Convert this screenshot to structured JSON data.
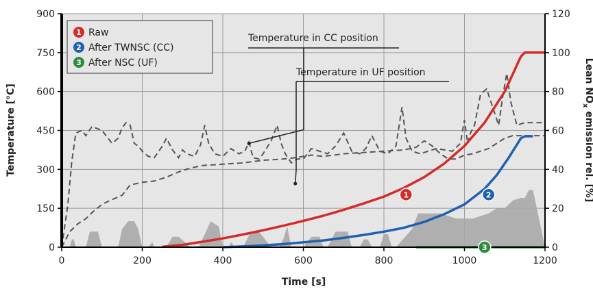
{
  "chart_data": {
    "type": "line",
    "xlabel": "Time [s]",
    "ylabel": "Temperature [°C]",
    "y2label": "Lean NO",
    "y2label_sub": "x",
    "y2label_tail": " emission rel. [%]",
    "xlim": [
      0,
      1200
    ],
    "ylim": [
      0,
      900
    ],
    "y2lim": [
      0,
      120
    ],
    "x_ticks": [
      0,
      200,
      400,
      600,
      800,
      1000,
      1200
    ],
    "y_ticks": [
      0,
      150,
      300,
      450,
      600,
      750,
      900
    ],
    "y2_ticks": [
      0,
      20,
      40,
      60,
      80,
      100,
      120
    ],
    "grid": true,
    "legend_position": "top-left",
    "legend": [
      {
        "badge": "1",
        "label": "Raw",
        "color": "#d42a2a"
      },
      {
        "badge": "2",
        "label": "After TWNSC (CC)",
        "color": "#2060b0"
      },
      {
        "badge": "3",
        "label": "After NSC (UF)",
        "color": "#2e8b3e"
      }
    ],
    "annotations": [
      {
        "text": "Temperature in CC position",
        "x": 465,
        "y": 400
      },
      {
        "text": "Temperature in UF position",
        "x": 580,
        "y": 245
      }
    ],
    "series": [
      {
        "axis": "left",
        "style": "dashed",
        "color": "#555555",
        "x": [
          0,
          15,
          25,
          35,
          50,
          60,
          75,
          100,
          125,
          140,
          150,
          160,
          170,
          180,
          190,
          200,
          215,
          230,
          250,
          260,
          275,
          290,
          300,
          310,
          330,
          345,
          355,
          365,
          380,
          400,
          420,
          440,
          455,
          465,
          475,
          490,
          500,
          520,
          535,
          545,
          555,
          570,
          585,
          600,
          620,
          640,
          660,
          680,
          700,
          720,
          740,
          755,
          770,
          790,
          810,
          830,
          845,
          855,
          870,
          890,
          910,
          930,
          950,
          970,
          990,
          1000,
          1008,
          1015,
          1025,
          1040,
          1055,
          1070,
          1085,
          1095,
          1105,
          1115,
          1130,
          1150,
          1160,
          1170,
          1180,
          1190,
          1200
        ],
        "y": [
          0,
          160,
          330,
          440,
          450,
          430,
          465,
          450,
          400,
          420,
          460,
          480,
          470,
          400,
          390,
          370,
          350,
          345,
          390,
          420,
          375,
          345,
          375,
          360,
          350,
          395,
          470,
          400,
          360,
          350,
          380,
          360,
          370,
          405,
          345,
          340,
          360,
          410,
          470,
          400,
          360,
          325,
          340,
          340,
          380,
          370,
          360,
          390,
          440,
          370,
          360,
          380,
          430,
          370,
          360,
          390,
          540,
          420,
          370,
          360,
          370,
          380,
          375,
          370,
          400,
          490,
          400,
          440,
          470,
          590,
          610,
          540,
          470,
          580,
          670,
          560,
          470,
          480,
          480,
          480,
          480,
          480,
          480
        ]
      },
      {
        "axis": "left",
        "style": "dashed",
        "color": "#555555",
        "x": [
          0,
          20,
          40,
          60,
          80,
          100,
          120,
          150,
          170,
          200,
          230,
          260,
          290,
          320,
          350,
          400,
          450,
          500,
          550,
          580,
          620,
          650,
          700,
          750,
          800,
          850,
          880,
          900,
          920,
          940,
          960,
          980,
          1000,
          1020,
          1040,
          1060,
          1080,
          1100,
          1120,
          1140,
          1160,
          1180,
          1200
        ],
        "y": [
          0,
          60,
          90,
          110,
          140,
          165,
          180,
          200,
          240,
          250,
          255,
          270,
          290,
          305,
          315,
          320,
          325,
          335,
          340,
          345,
          355,
          350,
          360,
          365,
          370,
          375,
          385,
          410,
          390,
          360,
          340,
          340,
          355,
          360,
          370,
          380,
          400,
          420,
          430,
          430,
          430,
          430,
          430
        ]
      },
      {
        "axis": "left",
        "style": "area",
        "color": "#a8a8a8",
        "x": [
          0,
          20,
          25,
          30,
          35,
          60,
          70,
          90,
          100,
          140,
          150,
          165,
          180,
          190,
          200,
          215,
          225,
          230,
          260,
          275,
          290,
          320,
          340,
          355,
          370,
          390,
          400,
          415,
          420,
          430,
          450,
          470,
          490,
          520,
          540,
          550,
          560,
          570,
          600,
          620,
          640,
          650,
          660,
          680,
          710,
          720,
          740,
          750,
          760,
          770,
          790,
          800,
          810,
          820,
          830,
          870,
          885,
          900,
          940,
          960,
          980,
          1000,
          1020,
          1040,
          1060,
          1080,
          1100,
          1120,
          1140,
          1150,
          1160,
          1170,
          1200
        ],
        "y": [
          0,
          0,
          30,
          30,
          0,
          0,
          60,
          60,
          0,
          0,
          70,
          100,
          100,
          70,
          0,
          0,
          20,
          0,
          0,
          40,
          40,
          0,
          0,
          50,
          100,
          80,
          0,
          0,
          20,
          0,
          0,
          60,
          60,
          0,
          0,
          30,
          80,
          0,
          0,
          40,
          40,
          0,
          0,
          60,
          60,
          0,
          0,
          30,
          30,
          0,
          0,
          50,
          50,
          0,
          0,
          70,
          130,
          130,
          130,
          120,
          110,
          110,
          110,
          120,
          130,
          150,
          150,
          180,
          190,
          190,
          220,
          220,
          0
        ]
      },
      {
        "axis": "right",
        "name": "Raw",
        "style": "solid",
        "color": "#d42a2a",
        "x": [
          250,
          300,
          350,
          400,
          450,
          500,
          550,
          600,
          650,
          700,
          750,
          800,
          850,
          900,
          950,
          1000,
          1050,
          1100,
          1140,
          1150,
          1170,
          1200
        ],
        "y": [
          0.2,
          1.2,
          2.8,
          4.5,
          6.5,
          8.7,
          11,
          13.5,
          16.2,
          19.2,
          22.5,
          26,
          30.5,
          36,
          43,
          52,
          64,
          80,
          98,
          100,
          100,
          100
        ]
      },
      {
        "axis": "right",
        "name": "After TWNSC (CC)",
        "style": "solid",
        "color": "#2060b0",
        "x": [
          400,
          450,
          500,
          550,
          600,
          650,
          700,
          750,
          800,
          850,
          900,
          950,
          1000,
          1050,
          1080,
          1110,
          1140,
          1150,
          1170
        ],
        "y": [
          0,
          0.4,
          0.9,
          1.6,
          2.5,
          3.5,
          4.8,
          6.3,
          8,
          10,
          13,
          17,
          22,
          30,
          37,
          46,
          56,
          57,
          57
        ]
      },
      {
        "axis": "right",
        "name": "After NSC (UF)",
        "style": "solid",
        "color": "#2e8b3e",
        "x": [
          880,
          1000,
          1100,
          1200
        ],
        "y": [
          0,
          0,
          0,
          0
        ]
      }
    ],
    "markers": [
      {
        "badge": "1",
        "x": 855,
        "y2": 27,
        "color": "#d42a2a"
      },
      {
        "badge": "2",
        "x": 1060,
        "y2": 27,
        "color": "#2060b0"
      },
      {
        "badge": "3",
        "x": 1050,
        "y2": 0,
        "color": "#2e8b3e"
      }
    ]
  }
}
